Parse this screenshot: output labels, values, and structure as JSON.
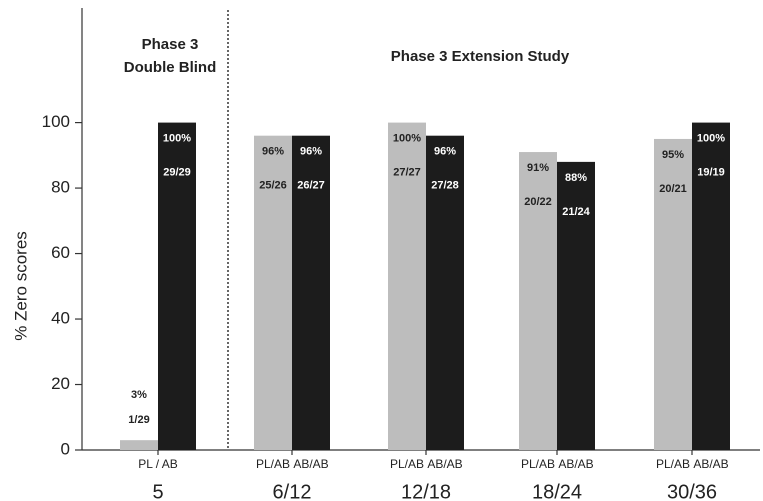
{
  "chart_data": {
    "type": "bar",
    "y_label": "% Zero scores",
    "annotations": [
      "Phase 3",
      "Double Blind",
      "Phase 3 Extension Study"
    ],
    "categories": [
      "5",
      "6/12",
      "12/18",
      "18/24",
      "30/36"
    ],
    "sub_labels": [
      [
        "PL / AB"
      ],
      [
        "PL/AB",
        "AB/AB"
      ],
      [
        "PL/AB",
        "AB/AB"
      ],
      [
        "PL/AB",
        "AB/AB"
      ],
      [
        "PL/AB",
        "AB/AB"
      ]
    ],
    "series": [
      {
        "color": "#bdbdbd",
        "values": [
          3,
          96,
          100,
          91,
          95
        ],
        "value_labels": [
          "3%",
          "96%",
          "100%",
          "91%",
          "95%"
        ],
        "count_labels": [
          "1/29",
          "25/26",
          "27/27",
          "20/22",
          "20/21"
        ]
      },
      {
        "color": "#1c1c1c",
        "values": [
          100,
          96,
          96,
          88,
          100
        ],
        "value_labels": [
          "100%",
          "96%",
          "96%",
          "88%",
          "100%"
        ],
        "count_labels": [
          "29/29",
          "26/27",
          "27/28",
          "21/24",
          "19/19"
        ]
      }
    ],
    "ylim": [
      0,
      135
    ],
    "yticks": [
      0,
      20,
      40,
      60,
      80,
      100
    ]
  }
}
